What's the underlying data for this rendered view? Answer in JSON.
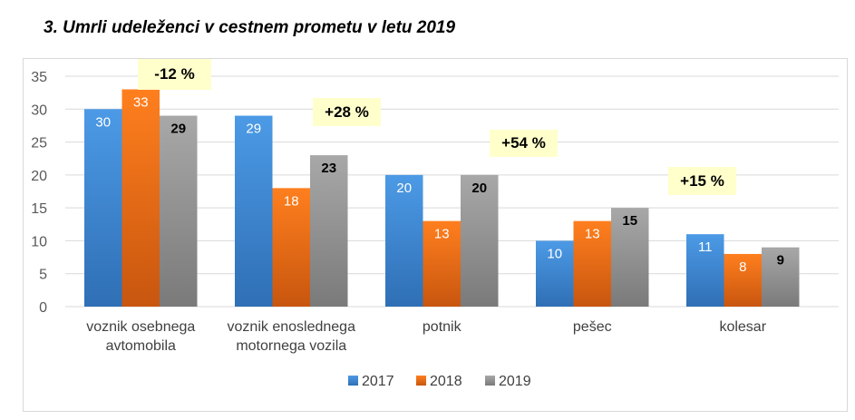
{
  "title": "3. Umrli udeleženci v cestnem prometu v letu 2019",
  "chart_data": {
    "type": "bar",
    "title": "3. Umrli udeleženci v cestnem prometu v letu 2019",
    "categories": [
      "voznik osebnega avtomobila",
      "voznik enoslednega motornega vozila",
      "potnik",
      "pešec",
      "kolesar"
    ],
    "category_lines": [
      [
        "voznik osebnega",
        "avtomobila"
      ],
      [
        "voznik enoslednega",
        "motornega vozila"
      ],
      [
        "potnik"
      ],
      [
        "pešec"
      ],
      [
        "kolesar"
      ]
    ],
    "series": [
      {
        "name": "2017",
        "values": [
          30,
          29,
          20,
          10,
          11
        ],
        "color": "#4a90d9"
      },
      {
        "name": "2018",
        "values": [
          33,
          18,
          13,
          13,
          8
        ],
        "color": "#f07820"
      },
      {
        "name": "2019",
        "values": [
          29,
          23,
          20,
          15,
          9
        ],
        "color": "#9a9a9a"
      }
    ],
    "annotations": [
      "-12 %",
      "+28 %",
      "+54 %",
      "+15 %"
    ],
    "ylim": [
      0,
      35
    ],
    "yticks": [
      0,
      5,
      10,
      15,
      20,
      25,
      30,
      35
    ],
    "grid": true,
    "legend": "bottom",
    "xlabel": "",
    "ylabel": ""
  }
}
